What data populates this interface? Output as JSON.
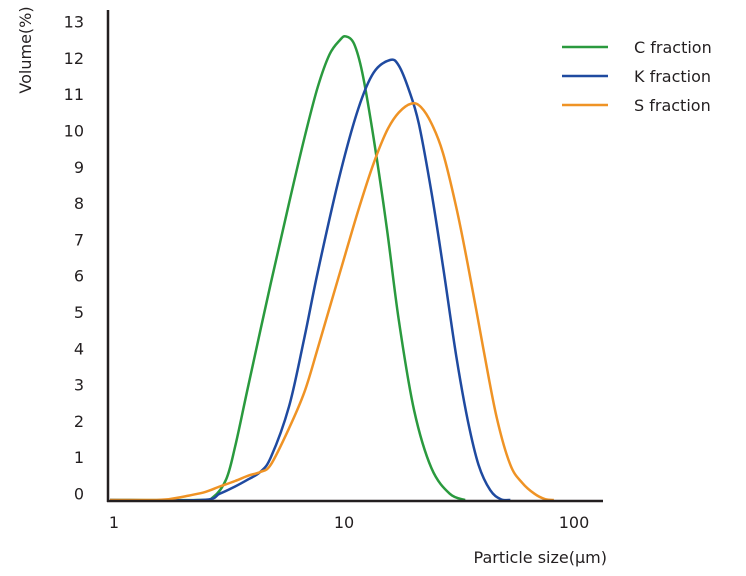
{
  "chart_data": {
    "type": "line",
    "xlabel": "Particle size(μm)",
    "ylabel": "Volume(%)",
    "x_scale": "log",
    "xlim": [
      1,
      140
    ],
    "ylim": [
      -0.2,
      13.4
    ],
    "x_ticks": [
      1,
      10,
      100
    ],
    "x_tick_labels": [
      "1",
      "10",
      "100"
    ],
    "y_ticks": [
      0,
      1,
      2,
      3,
      4,
      5,
      6,
      7,
      8,
      9,
      10,
      11,
      12,
      13
    ],
    "y_tick_labels": [
      "0",
      "1",
      "2",
      "3",
      "4",
      "5",
      "6",
      "7",
      "8",
      "9",
      "10",
      "11",
      "12",
      "13"
    ],
    "grid": false,
    "legend_position": "top-right",
    "series": [
      {
        "name": "C fraction",
        "color": "#2a9a3e",
        "points": [
          [
            1.0,
            0
          ],
          [
            2.4,
            0
          ],
          [
            2.8,
            0.1
          ],
          [
            3.2,
            0.6
          ],
          [
            3.5,
            1.5
          ],
          [
            4.0,
            3.2
          ],
          [
            5.0,
            6.0
          ],
          [
            6.0,
            8.2
          ],
          [
            7.0,
            10.0
          ],
          [
            8.0,
            11.4
          ],
          [
            9.0,
            12.3
          ],
          [
            10.0,
            12.7
          ],
          [
            10.6,
            12.8
          ],
          [
            11.5,
            12.6
          ],
          [
            12.5,
            11.8
          ],
          [
            14.0,
            10.0
          ],
          [
            16.0,
            7.5
          ],
          [
            18.0,
            5.0
          ],
          [
            21.0,
            2.5
          ],
          [
            25.0,
            0.9
          ],
          [
            30.0,
            0.2
          ],
          [
            35.0,
            0
          ]
        ]
      },
      {
        "name": "K fraction",
        "color": "#1f4aa0",
        "points": [
          [
            1.0,
            0
          ],
          [
            2.5,
            0
          ],
          [
            3.0,
            0.2
          ],
          [
            3.5,
            0.4
          ],
          [
            4.0,
            0.6
          ],
          [
            4.5,
            0.8
          ],
          [
            5.0,
            1.2
          ],
          [
            6.0,
            2.6
          ],
          [
            7.0,
            4.5
          ],
          [
            8.0,
            6.3
          ],
          [
            10.0,
            9.0
          ],
          [
            12.0,
            10.8
          ],
          [
            14.0,
            11.8
          ],
          [
            16.5,
            12.15
          ],
          [
            18.0,
            12.0
          ],
          [
            20.0,
            11.3
          ],
          [
            22.0,
            10.4
          ],
          [
            25.0,
            8.5
          ],
          [
            28.0,
            6.5
          ],
          [
            32.0,
            4.0
          ],
          [
            36.0,
            2.2
          ],
          [
            40.0,
            1.0
          ],
          [
            45.0,
            0.3
          ],
          [
            50.0,
            0.05
          ],
          [
            55.0,
            0
          ]
        ]
      },
      {
        "name": "S fraction",
        "color": "#ef9325",
        "points": [
          [
            1.0,
            0
          ],
          [
            1.5,
            0
          ],
          [
            1.8,
            0.05
          ],
          [
            2.2,
            0.15
          ],
          [
            2.6,
            0.25
          ],
          [
            3.0,
            0.4
          ],
          [
            3.5,
            0.55
          ],
          [
            4.0,
            0.7
          ],
          [
            4.5,
            0.8
          ],
          [
            5.0,
            1.0
          ],
          [
            6.0,
            2.0
          ],
          [
            7.0,
            3.0
          ],
          [
            8.0,
            4.2
          ],
          [
            10.0,
            6.3
          ],
          [
            12.0,
            8.0
          ],
          [
            14.0,
            9.3
          ],
          [
            16.0,
            10.2
          ],
          [
            18.0,
            10.7
          ],
          [
            20.5,
            10.95
          ],
          [
            22.5,
            10.85
          ],
          [
            25.0,
            10.4
          ],
          [
            28.0,
            9.6
          ],
          [
            32.0,
            8.1
          ],
          [
            36.0,
            6.5
          ],
          [
            42.0,
            4.2
          ],
          [
            48.0,
            2.3
          ],
          [
            55.0,
            1.0
          ],
          [
            62.0,
            0.5
          ],
          [
            70.0,
            0.2
          ],
          [
            78.0,
            0.05
          ],
          [
            85.0,
            0
          ]
        ]
      }
    ]
  }
}
